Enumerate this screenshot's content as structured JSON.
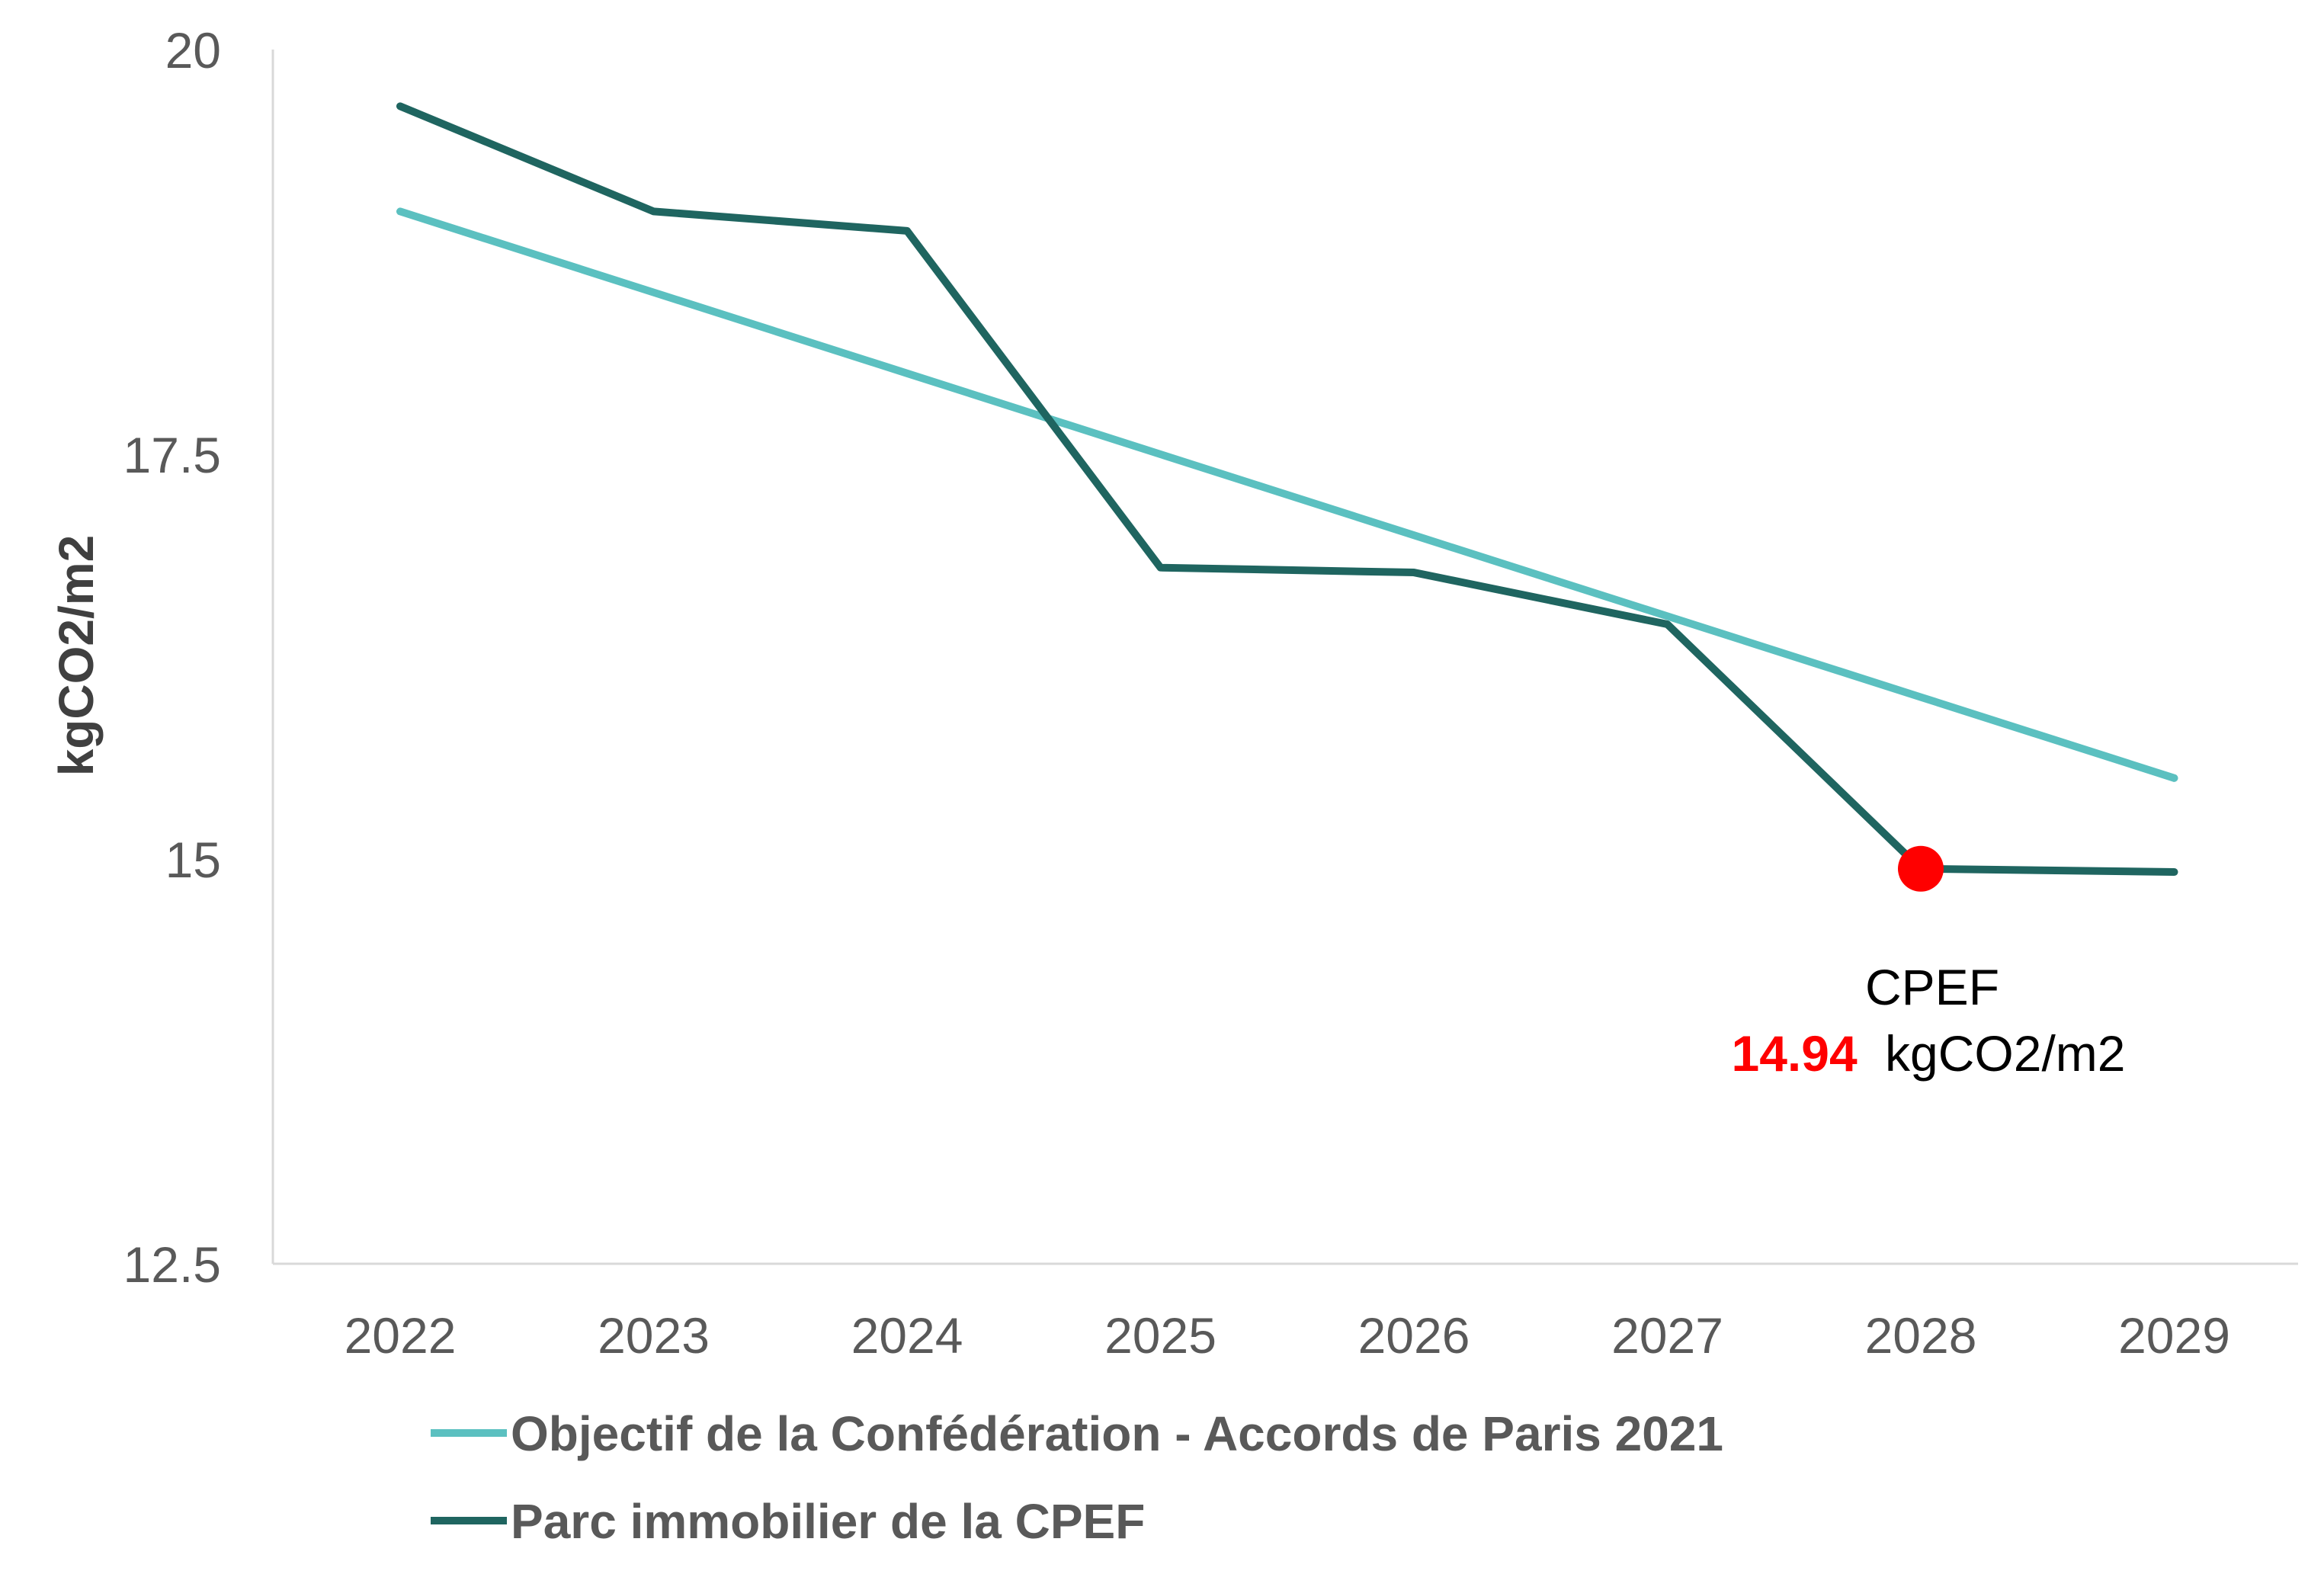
{
  "chart_data": {
    "type": "line",
    "x": [
      2022,
      2023,
      2024,
      2025,
      2026,
      2027,
      2028,
      2029
    ],
    "ylabel": "kgCO2/m2",
    "ylim": [
      12.5,
      20
    ],
    "yticks": [
      "20",
      "17.5",
      "15",
      "12.5"
    ],
    "ytick_values": [
      20,
      17.5,
      15,
      12.5
    ],
    "xticks": [
      "2022",
      "2023",
      "2024",
      "2025",
      "2026",
      "2027",
      "2028",
      "2029"
    ],
    "grid": false,
    "legend_position": "bottom",
    "series": [
      {
        "name": "Objectif de la Confédération - Accords de Paris 2021",
        "color": "#5bc0c0",
        "values": [
          19.0,
          18.5,
          18.0,
          17.5,
          17.0,
          16.5,
          16.0,
          15.5
        ]
      },
      {
        "name": "Parc immobilier de la CPEF",
        "color": "#1f6560",
        "values": [
          19.65,
          19.0,
          18.88,
          16.8,
          16.77,
          16.45,
          14.94,
          14.92
        ]
      }
    ],
    "highlight": {
      "x": 2028,
      "y": 14.94,
      "color": "#ff0000",
      "label": "CPEF",
      "value_text": "14.94",
      "unit": "kgCO2/m2"
    }
  }
}
